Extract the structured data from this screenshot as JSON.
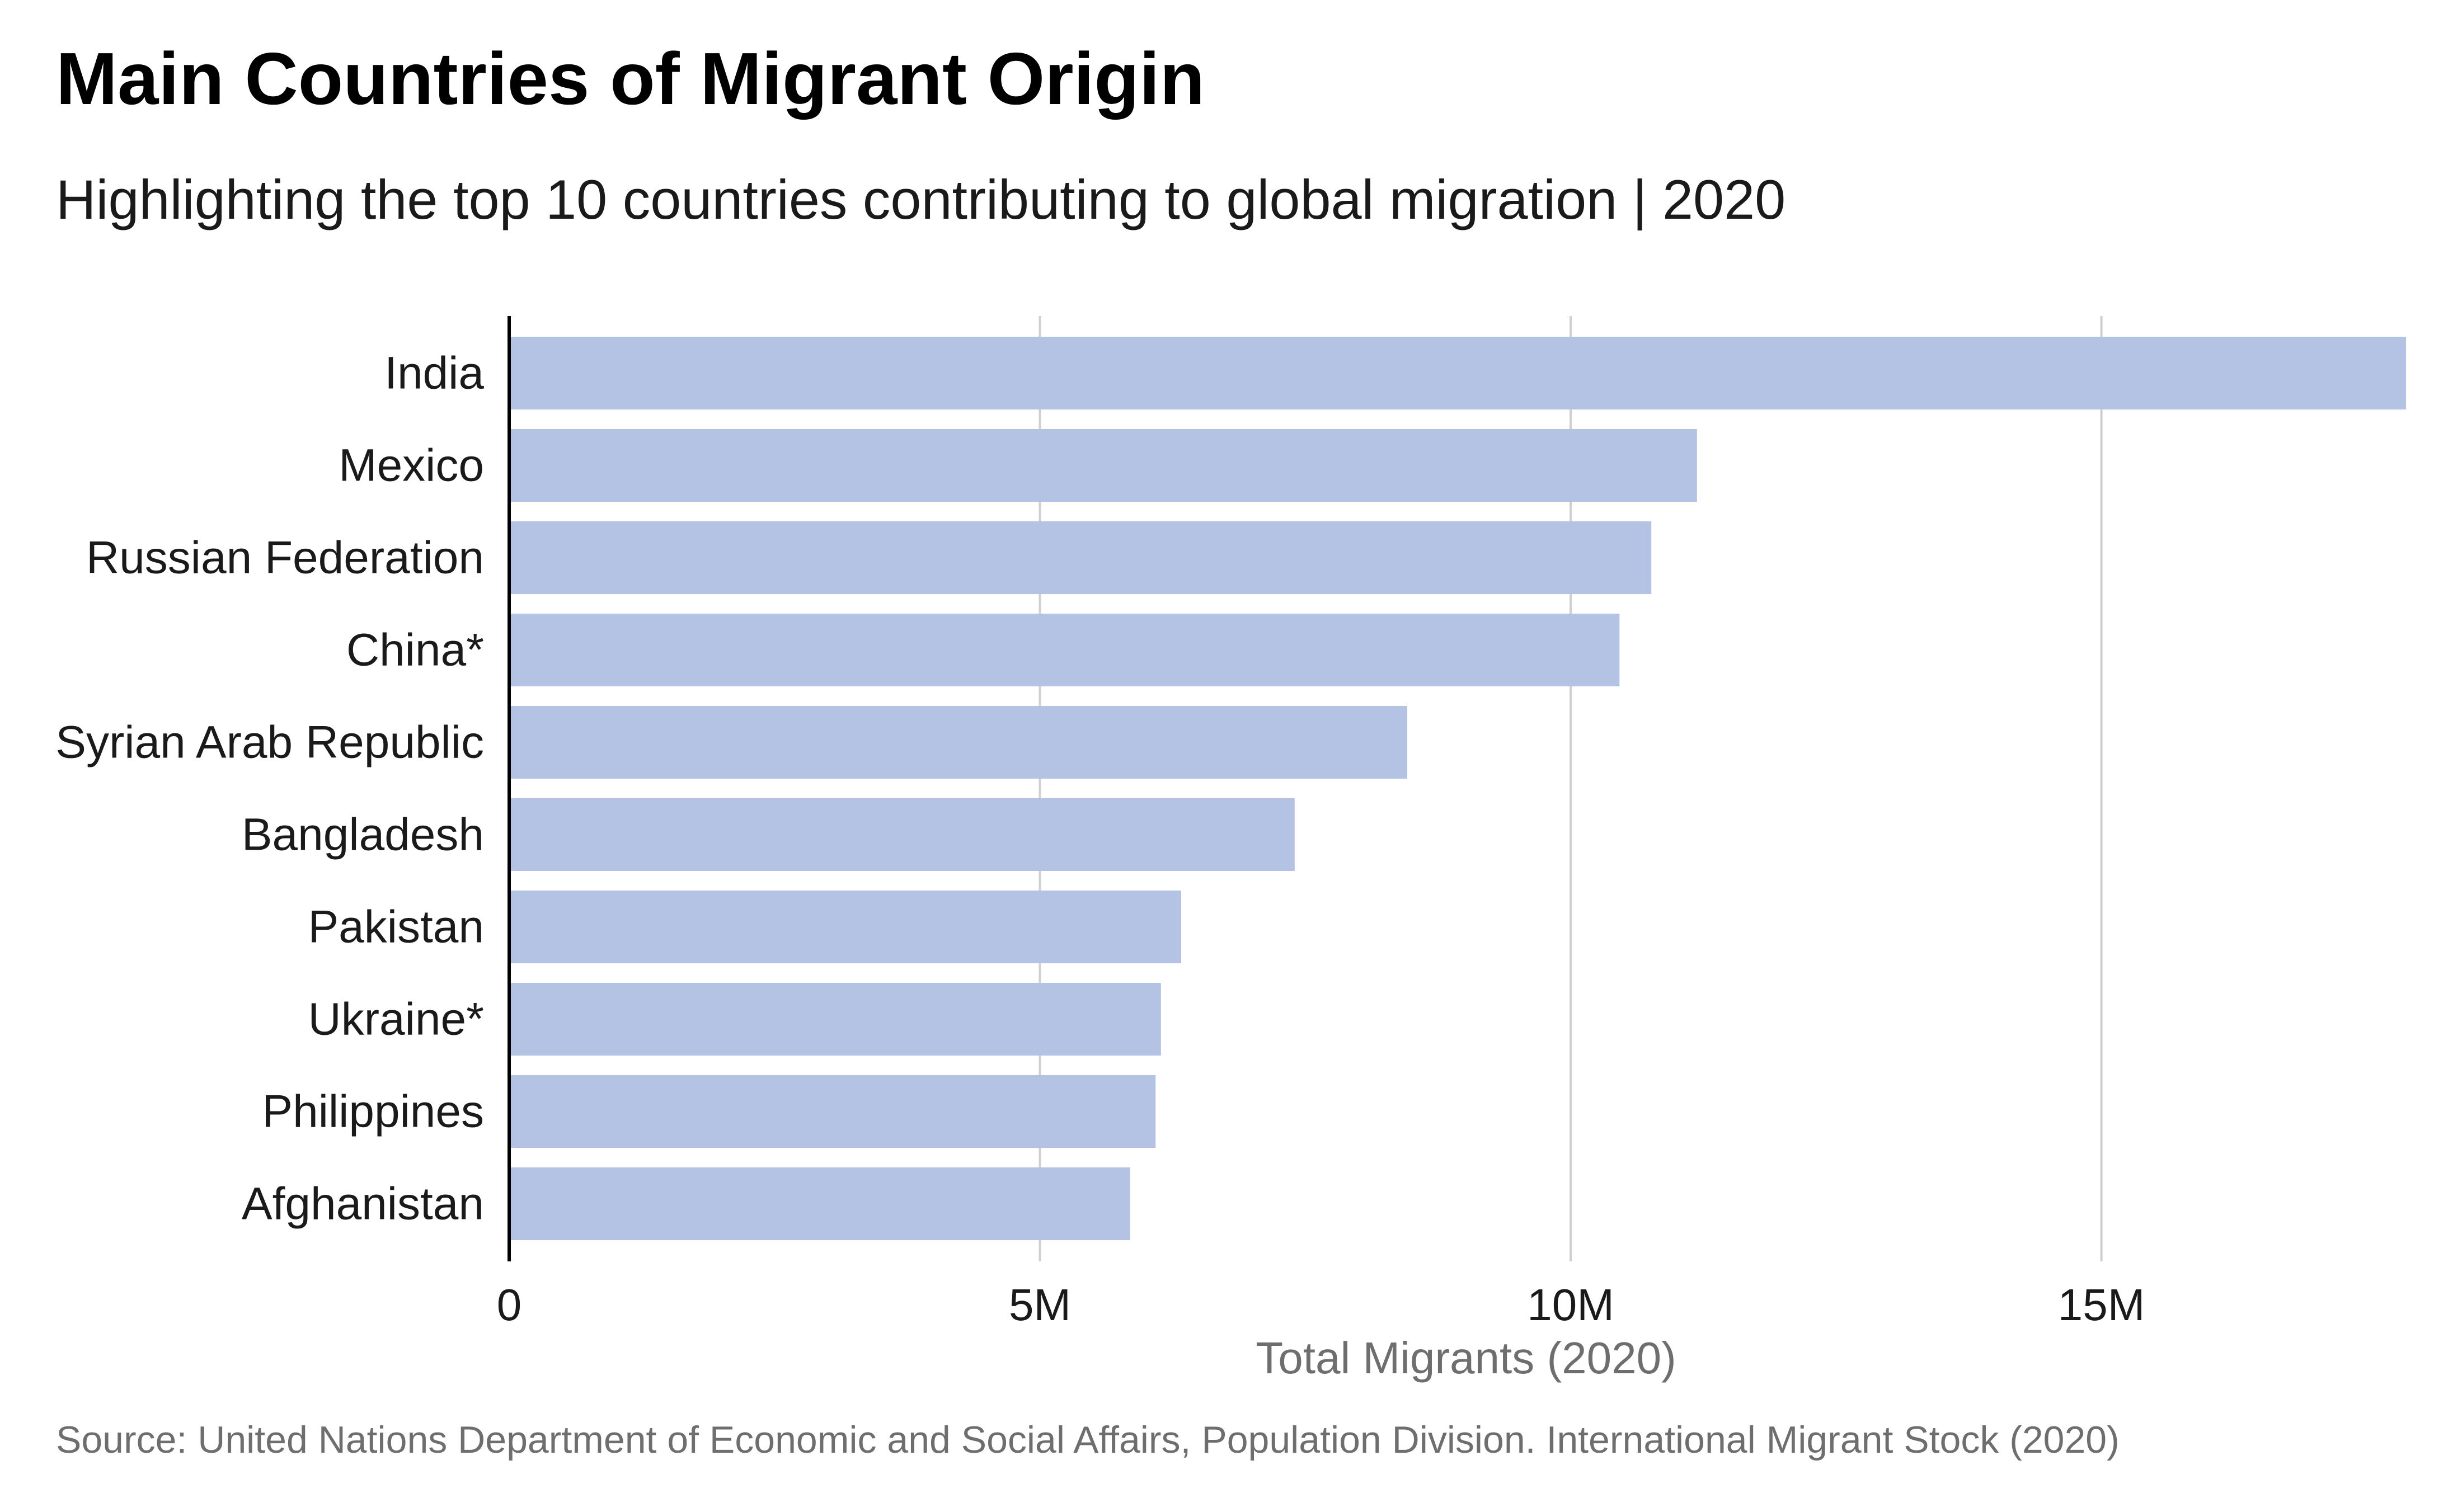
{
  "chart_data": {
    "type": "bar",
    "orientation": "horizontal",
    "title": "Main Countries of Migrant Origin",
    "subtitle": "Highlighting the top 10 countries contributing to global migration | 2020",
    "xlabel": "Total Migrants (2020)",
    "ylabel": "",
    "source": "Source: United Nations Department of Economic and Social Affairs, Population Division. International Migrant Stock (2020)",
    "categories": [
      "India",
      "Mexico",
      "Russian Federation",
      "China*",
      "Syrian Arab Republic",
      "Bangladesh",
      "Pakistan",
      "Ukraine*",
      "Philippines",
      "Afghanistan"
    ],
    "values": [
      17870000,
      11190000,
      10760000,
      10460000,
      8460000,
      7400000,
      6330000,
      6140000,
      6090000,
      5850000
    ],
    "xticks": [
      0,
      5000000,
      10000000,
      15000000
    ],
    "xtick_labels": [
      "0",
      "5M",
      "10M",
      "15M"
    ],
    "xlim": [
      0,
      17870000
    ],
    "grid": "vertical",
    "legend": "none",
    "bar_color": "#b4c2e4"
  }
}
